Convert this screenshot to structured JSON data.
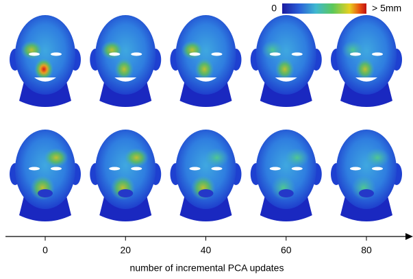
{
  "colorbar": {
    "min_label": "0",
    "max_label": "> 5mm"
  },
  "axis": {
    "ticks": [
      0,
      20,
      40,
      60,
      80
    ],
    "label": "number of incremental PCA updates"
  }
}
